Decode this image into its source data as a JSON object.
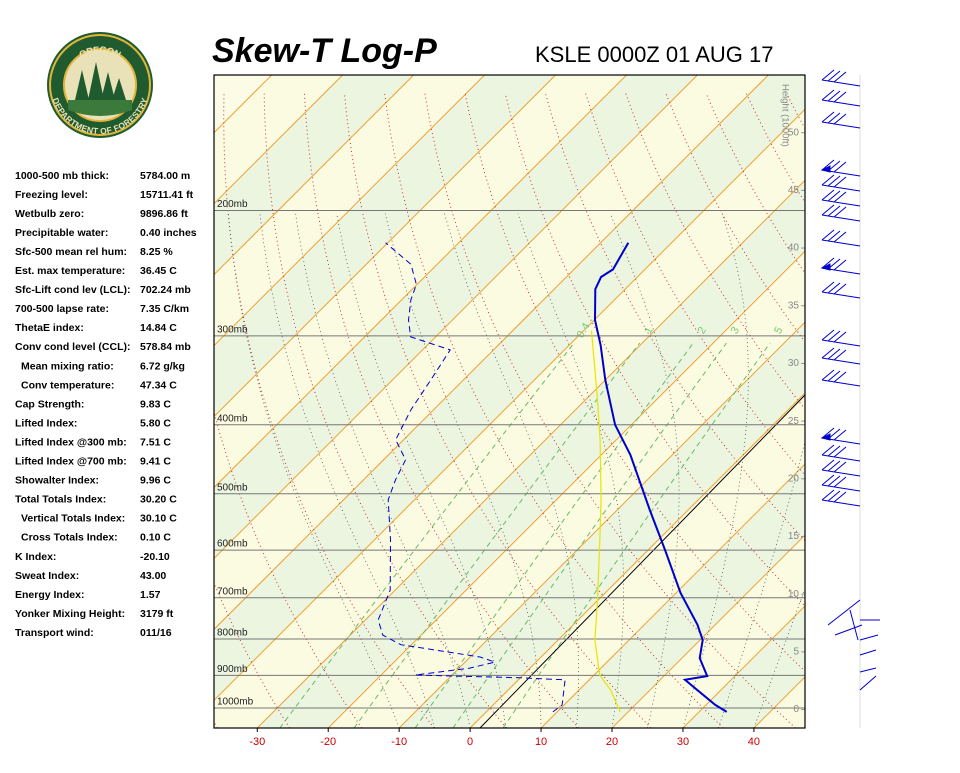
{
  "chart_data": {
    "type": "skewt",
    "title": "Skew-T Log-P",
    "subtitle": "KSLE 0000Z 01 AUG 17",
    "xlim": [
      -36.1,
      47.2
    ],
    "xticks": [
      -30,
      -20,
      -10,
      0,
      10,
      20,
      30,
      40
    ],
    "xtick_color": "#cc0000",
    "ylim": [
      1067,
      129
    ],
    "log_y": true,
    "yticks": [
      {
        "value": 1000,
        "label": "1000mb"
      },
      {
        "value": 900,
        "label": "900mb"
      },
      {
        "value": 800,
        "label": "800mb"
      },
      {
        "value": 700,
        "label": "700mb"
      },
      {
        "value": 600,
        "label": "600mb"
      },
      {
        "value": 500,
        "label": "500mb"
      },
      {
        "value": 400,
        "label": "400mb"
      },
      {
        "value": 300,
        "label": "300mb"
      },
      {
        "value": 200,
        "label": "200mb"
      }
    ],
    "y2label": "Height (1000ft)",
    "y2lim": [
      -1.6,
      55
    ],
    "y2ticks": [
      0,
      5,
      10,
      15,
      20,
      25,
      30,
      35,
      40,
      45,
      50
    ],
    "mixing_ratio_labels": [
      0.4,
      1,
      2,
      3,
      5
    ],
    "series": [
      {
        "color": "#0000cc",
        "dash": "solid",
        "pressure": [
          1013,
          990,
          943,
          913,
          902,
          851,
          803,
          764,
          689,
          600,
          527,
          441,
          400,
          346,
          309,
          285,
          258,
          248,
          242,
          222
        ],
        "values": [
          33.9,
          31.3,
          26.6,
          23.5,
          26.1,
          22.5,
          20.4,
          17.5,
          10.6,
          2.4,
          -5.4,
          -15.9,
          -22.3,
          -30.0,
          -35.6,
          -39.9,
          -44.2,
          -45.1,
          -44.5,
          -46.1
        ]
      },
      {
        "color": "#0000cc",
        "dash": "dashed",
        "pressure": [
          1013,
          990,
          913,
          907,
          899,
          879,
          862,
          848,
          815,
          790,
          752,
          683,
          581,
          510,
          478,
          448,
          420,
          381,
          346,
          314,
          301,
          285,
          267,
          254,
          238,
          222
        ],
        "values": [
          9.4,
          9.7,
          6.6,
          0,
          -15.2,
          -8.5,
          -5.8,
          -8.6,
          -21.5,
          -25.4,
          -28.2,
          -30.7,
          -37.7,
          -43.7,
          -45.5,
          -46.9,
          -51.1,
          -53.2,
          -54.6,
          -56.1,
          -63.5,
          -66.2,
          -68.7,
          -70.1,
          -73.7,
          -80.3
        ]
      },
      {
        "color": "#e6e600",
        "dash": "solid",
        "pressure": [
          1013,
          943,
          899,
          803,
          705,
          581,
          510,
          420,
          369,
          295
        ],
        "values": [
          18.9,
          14.4,
          10.8,
          5.2,
          -0.1,
          -8.2,
          -13.7,
          -22.3,
          -28.3,
          -38.9
        ]
      }
    ]
  },
  "logo": {
    "top": "OREGON",
    "bottom": "DEPARTMENT OF FORESTRY"
  },
  "indices": [
    {
      "label": "1000-500 mb thick:",
      "value": "5784.00 m"
    },
    {
      "label": "Freezing level:",
      "value": "15711.41 ft"
    },
    {
      "label": "Wetbulb zero:",
      "value": "9896.86 ft"
    },
    {
      "label": "Precipitable water:",
      "value": "0.40 inches"
    },
    {
      "label": "Sfc-500 mean rel hum:",
      "value": "8.25 %"
    },
    {
      "label": "Est. max temperature:",
      "value": "36.45 C"
    },
    {
      "label": "Sfc-Lift cond lev (LCL):",
      "value": "702.24 mb"
    },
    {
      "label": "700-500 lapse rate:",
      "value": "7.35 C/km"
    },
    {
      "label": "ThetaE index:",
      "value": "14.84 C"
    },
    {
      "label": "Conv cond level (CCL):",
      "value": "578.84 mb"
    },
    {
      "label": "Mean mixing ratio:",
      "value": "6.72 g/kg"
    },
    {
      "label": "Conv temperature:",
      "value": "47.34 C"
    },
    {
      "label": "Cap Strength:",
      "value": "9.83 C"
    },
    {
      "label": "Lifted Index:",
      "value": "5.80 C"
    },
    {
      "label": "Lifted Index @300 mb:",
      "value": "7.51 C"
    },
    {
      "label": "Lifted Index @700 mb:",
      "value": "9.41 C"
    },
    {
      "label": "Showalter Index:",
      "value": "9.96 C"
    },
    {
      "label": "Total Totals Index:",
      "value": "30.20 C"
    },
    {
      "label": "Vertical Totals Index:",
      "value": "30.10 C"
    },
    {
      "label": "Cross Totals Index:",
      "value": "0.10 C"
    },
    {
      "label": "K Index:",
      "value": "-20.10"
    },
    {
      "label": "Sweat Index:",
      "value": "43.00"
    },
    {
      "label": "Energy Index:",
      "value": "1.57"
    },
    {
      "label": "Yonker Mixing Height:",
      "value": "3179 ft"
    },
    {
      "label": "Transport wind:",
      "value": "011/16"
    }
  ]
}
